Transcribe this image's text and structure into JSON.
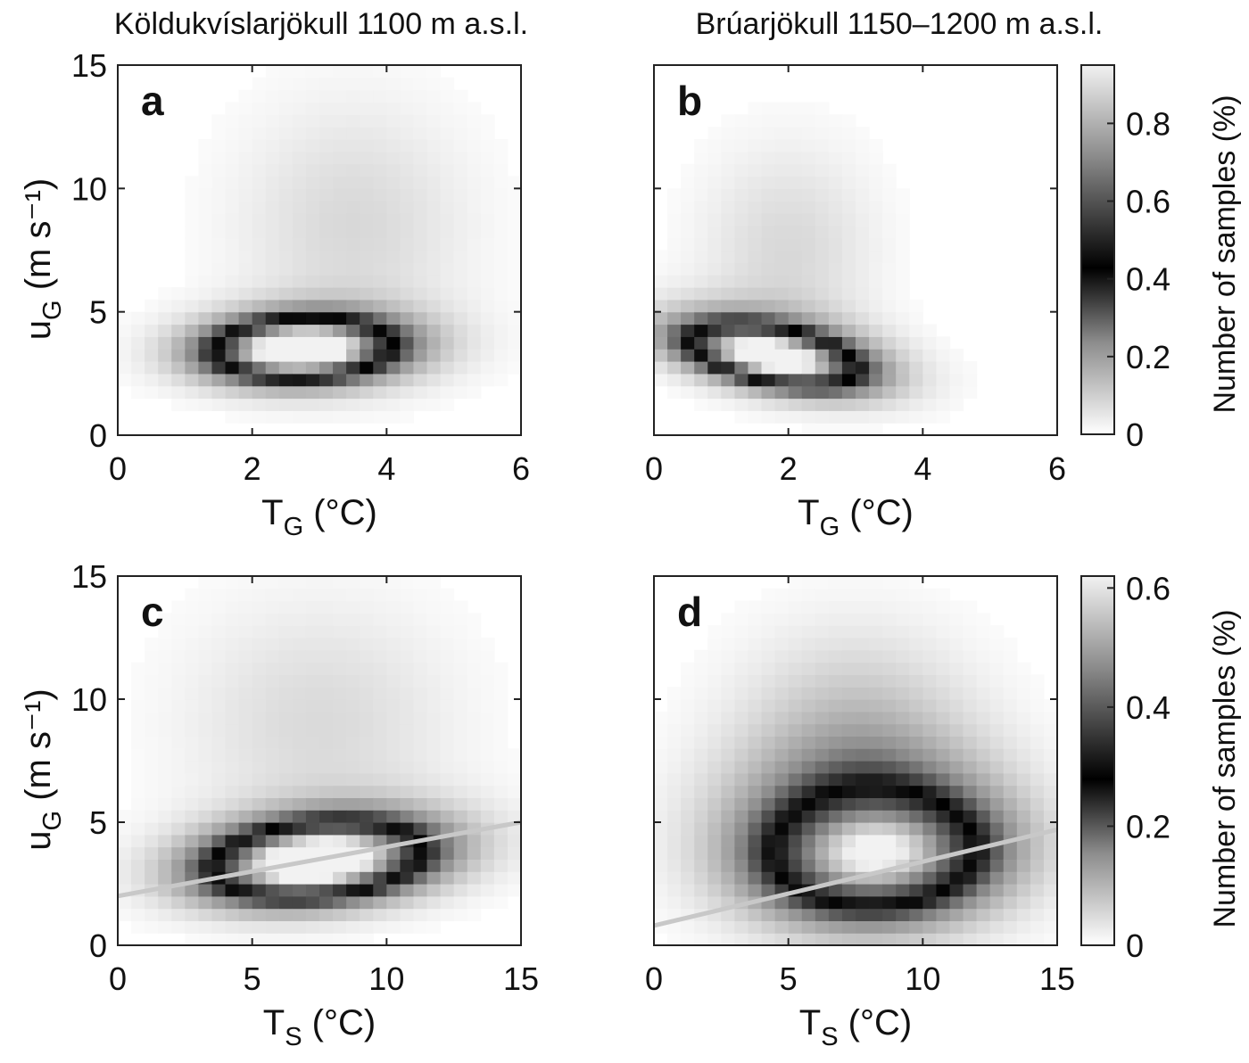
{
  "figure": {
    "column_titles": [
      "Köldukvíslarjökull 1100 m a.s.l.",
      "Brúarjökull 1150–1200 m a.s.l."
    ],
    "colorbar_label": "Number of samples (%)"
  },
  "chart_data": [
    {
      "type": "heatmap",
      "panel": "a",
      "xlabel": "T_G (°C)",
      "ylabel": "u_G (m s⁻¹)",
      "xlim": [
        0,
        6
      ],
      "ylim": [
        0,
        15
      ],
      "xticks": [
        0,
        2,
        4,
        6
      ],
      "yticks": [
        0,
        5,
        10,
        15
      ],
      "x_ticklabels": [
        "0",
        "2",
        "4",
        "6"
      ],
      "y_ticklabels": [
        "0",
        "5",
        "10",
        "15"
      ],
      "clim": [
        0,
        0.95
      ],
      "colorbar_ticks": [
        0,
        0.2,
        0.4,
        0.6,
        0.8
      ],
      "density_blobs": [
        {
          "cx": 2.7,
          "cy": 3.5,
          "sx": 0.85,
          "sy": 0.75,
          "rot": 0.42,
          "amp": 0.95
        },
        {
          "cx": 2.9,
          "cy": 3.6,
          "sx": 1.2,
          "sy": 1.1,
          "rot": 0.4,
          "amp": 0.28
        },
        {
          "cx": 3.5,
          "cy": 8.5,
          "sx": 1.2,
          "sy": 3.5,
          "rot": 0.0,
          "amp": 0.08
        }
      ],
      "trend_line": null
    },
    {
      "type": "heatmap",
      "panel": "b",
      "xlabel": "T_G (°C)",
      "ylabel": "",
      "xlim": [
        0,
        6
      ],
      "ylim": [
        0,
        15
      ],
      "xticks": [
        0,
        2,
        4,
        6
      ],
      "yticks": [
        0,
        5,
        10,
        15
      ],
      "x_ticklabels": [
        "0",
        "2",
        "4",
        "6"
      ],
      "y_ticklabels": [],
      "clim": [
        0,
        0.95
      ],
      "colorbar_ticks": [
        0,
        0.2,
        0.4,
        0.6,
        0.8
      ],
      "density_blobs": [
        {
          "cx": 1.75,
          "cy": 3.2,
          "sx": 0.6,
          "sy": 1.0,
          "rot": 0.8,
          "amp": 0.9
        },
        {
          "cx": 1.9,
          "cy": 3.5,
          "sx": 0.9,
          "sy": 1.4,
          "rot": 0.7,
          "amp": 0.25
        },
        {
          "cx": 2.0,
          "cy": 7.5,
          "sx": 0.9,
          "sy": 3.0,
          "rot": 0.0,
          "amp": 0.08
        }
      ],
      "trend_line": null
    },
    {
      "type": "heatmap",
      "panel": "c",
      "xlabel": "T_S (°C)",
      "ylabel": "u_G (m s⁻¹)",
      "xlim": [
        0,
        15
      ],
      "ylim": [
        0,
        15
      ],
      "xticks": [
        0,
        5,
        10,
        15
      ],
      "yticks": [
        0,
        5,
        10,
        15
      ],
      "x_ticklabels": [
        "0",
        "5",
        "10",
        "15"
      ],
      "y_ticklabels": [
        "0",
        "5",
        "10",
        "15"
      ],
      "clim": [
        0,
        0.62
      ],
      "colorbar_ticks": [
        0,
        0.2,
        0.4,
        0.6
      ],
      "density_blobs": [
        {
          "cx": 7.3,
          "cy": 3.4,
          "sx": 2.5,
          "sy": 0.95,
          "rot": 0.1,
          "amp": 0.6
        },
        {
          "cx": 7.8,
          "cy": 3.7,
          "sx": 3.4,
          "sy": 1.3,
          "rot": 0.1,
          "amp": 0.2
        },
        {
          "cx": 7.5,
          "cy": 9.0,
          "sx": 3.5,
          "sy": 3.5,
          "rot": 0.0,
          "amp": 0.05
        }
      ],
      "trend_line": {
        "x": [
          0,
          15
        ],
        "y": [
          2.0,
          5.0
        ]
      }
    },
    {
      "type": "heatmap",
      "panel": "d",
      "xlabel": "T_S (°C)",
      "ylabel": "",
      "xlim": [
        0,
        15
      ],
      "ylim": [
        0,
        15
      ],
      "xticks": [
        0,
        5,
        10,
        15
      ],
      "yticks": [
        0,
        5,
        10,
        15
      ],
      "x_ticklabels": [
        "0",
        "5",
        "10",
        "15"
      ],
      "y_ticklabels": [],
      "clim": [
        0,
        0.62
      ],
      "colorbar_ticks": [
        0,
        0.2,
        0.4,
        0.6
      ],
      "density_blobs": [
        {
          "cx": 8.3,
          "cy": 3.6,
          "sx": 2.7,
          "sy": 1.5,
          "rot": 0.05,
          "amp": 0.42
        },
        {
          "cx": 8.0,
          "cy": 4.5,
          "sx": 3.5,
          "sy": 2.4,
          "rot": 0.0,
          "amp": 0.22
        },
        {
          "cx": 7.5,
          "cy": 8.5,
          "sx": 3.0,
          "sy": 3.0,
          "rot": 0.0,
          "amp": 0.08
        }
      ],
      "trend_line": {
        "x": [
          0,
          15
        ],
        "y": [
          0.8,
          4.7
        ]
      }
    }
  ]
}
